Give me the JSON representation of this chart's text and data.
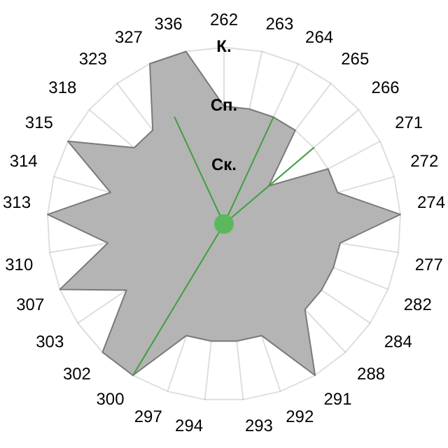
{
  "chart_data": {
    "type": "radar",
    "categories": [
      "262",
      "263",
      "264",
      "265",
      "266",
      "271",
      "272",
      "274",
      "277",
      "282",
      "284",
      "288",
      "291",
      "292",
      "293",
      "294",
      "297",
      "300",
      "302",
      "303",
      "307",
      "310",
      "313",
      "314",
      "315",
      "318",
      "323",
      "327",
      "336"
    ],
    "ylim": [
      0,
      3
    ],
    "yticks": [
      {
        "value": 1,
        "label": "Ск."
      },
      {
        "value": 2,
        "label": "Сп."
      },
      {
        "value": 3,
        "label": "К."
      }
    ],
    "grid": true,
    "legend": false,
    "marker": "none",
    "series": [
      {
        "color": "#b4b4b4",
        "values": [
          2,
          2,
          2,
          2,
          1,
          2,
          2,
          3,
          2,
          2,
          2,
          2,
          3,
          2,
          2,
          2,
          2,
          3,
          3,
          2,
          3,
          2,
          3,
          2,
          3,
          2,
          2,
          3,
          3
        ]
      },
      {
        "color": "#3f9f3f",
        "values": [
          0,
          0,
          2,
          0,
          2,
          0,
          0,
          0,
          0,
          0,
          0,
          0,
          0,
          0,
          0,
          0,
          0,
          3,
          0,
          0,
          0,
          0,
          0,
          0,
          0,
          0,
          0,
          2,
          0
        ]
      }
    ]
  }
}
